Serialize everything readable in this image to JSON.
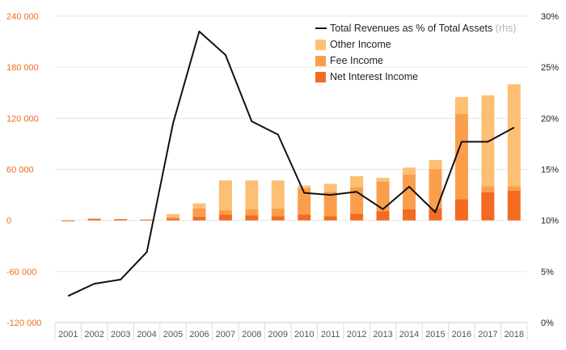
{
  "chart_data": {
    "type": "bar",
    "x": [
      "2001",
      "2002",
      "2003",
      "2004",
      "2005",
      "2006",
      "2007",
      "2008",
      "2009",
      "2010",
      "2011",
      "2012",
      "2013",
      "2014",
      "2015",
      "2016",
      "2017",
      "2018"
    ],
    "series": [
      {
        "name": "Net Interest Income",
        "kind": "stacked-bar",
        "axis": "left",
        "color": "#f26b21",
        "values": [
          -1000,
          2000,
          1500,
          1000,
          2000,
          4000,
          7000,
          6000,
          5000,
          7000,
          5000,
          8000,
          11000,
          13000,
          14000,
          25000,
          33000,
          35000
        ]
      },
      {
        "name": "Fee Income",
        "kind": "stacked-bar",
        "axis": "left",
        "color": "#fb9e4c",
        "values": [
          0,
          0,
          0,
          0,
          1500,
          10000,
          5000,
          7000,
          9000,
          31000,
          29000,
          31000,
          35000,
          41000,
          46000,
          100000,
          7000,
          5000
        ]
      },
      {
        "name": "Other Income",
        "kind": "stacked-bar",
        "axis": "left",
        "color": "#fdbf73",
        "values": [
          0,
          0,
          0,
          0,
          4000,
          6000,
          35000,
          34000,
          33000,
          3000,
          9000,
          13000,
          4000,
          8000,
          11000,
          20000,
          107000,
          120000
        ]
      },
      {
        "name": "Total Revenues as % of Total Assets",
        "name_suffix": "(rhs)",
        "kind": "line",
        "axis": "right",
        "color": "#111111",
        "values": [
          2.6,
          3.8,
          4.2,
          6.9,
          19.5,
          28.5,
          26.2,
          19.7,
          18.4,
          12.7,
          12.5,
          12.8,
          11.1,
          13.3,
          10.8,
          17.7,
          17.7,
          19.1
        ]
      }
    ],
    "y_left": {
      "ylim": [
        -120000,
        240000
      ],
      "ticks": [
        -120000,
        -60000,
        0,
        60000,
        120000,
        180000,
        240000
      ],
      "tick_labels": [
        "-120 000",
        "-60 000",
        "0",
        "60 000",
        "120 000",
        "180 000",
        "240 000"
      ]
    },
    "y_right": {
      "ylim": [
        0,
        30
      ],
      "ticks": [
        0,
        5,
        10,
        15,
        20,
        25,
        30
      ],
      "tick_labels": [
        "0%",
        "5%",
        "10%",
        "15%",
        "20%",
        "25%",
        "30%"
      ]
    },
    "legend_order": [
      "Total Revenues as % of Total Assets",
      "Other Income",
      "Fee Income",
      "Net Interest Income"
    ],
    "legend_position": "top-right",
    "grid": true,
    "colors": {
      "left_tick_color": "#f26b21",
      "right_tick_color": "#222222",
      "grid": "#e6e6e6"
    }
  }
}
